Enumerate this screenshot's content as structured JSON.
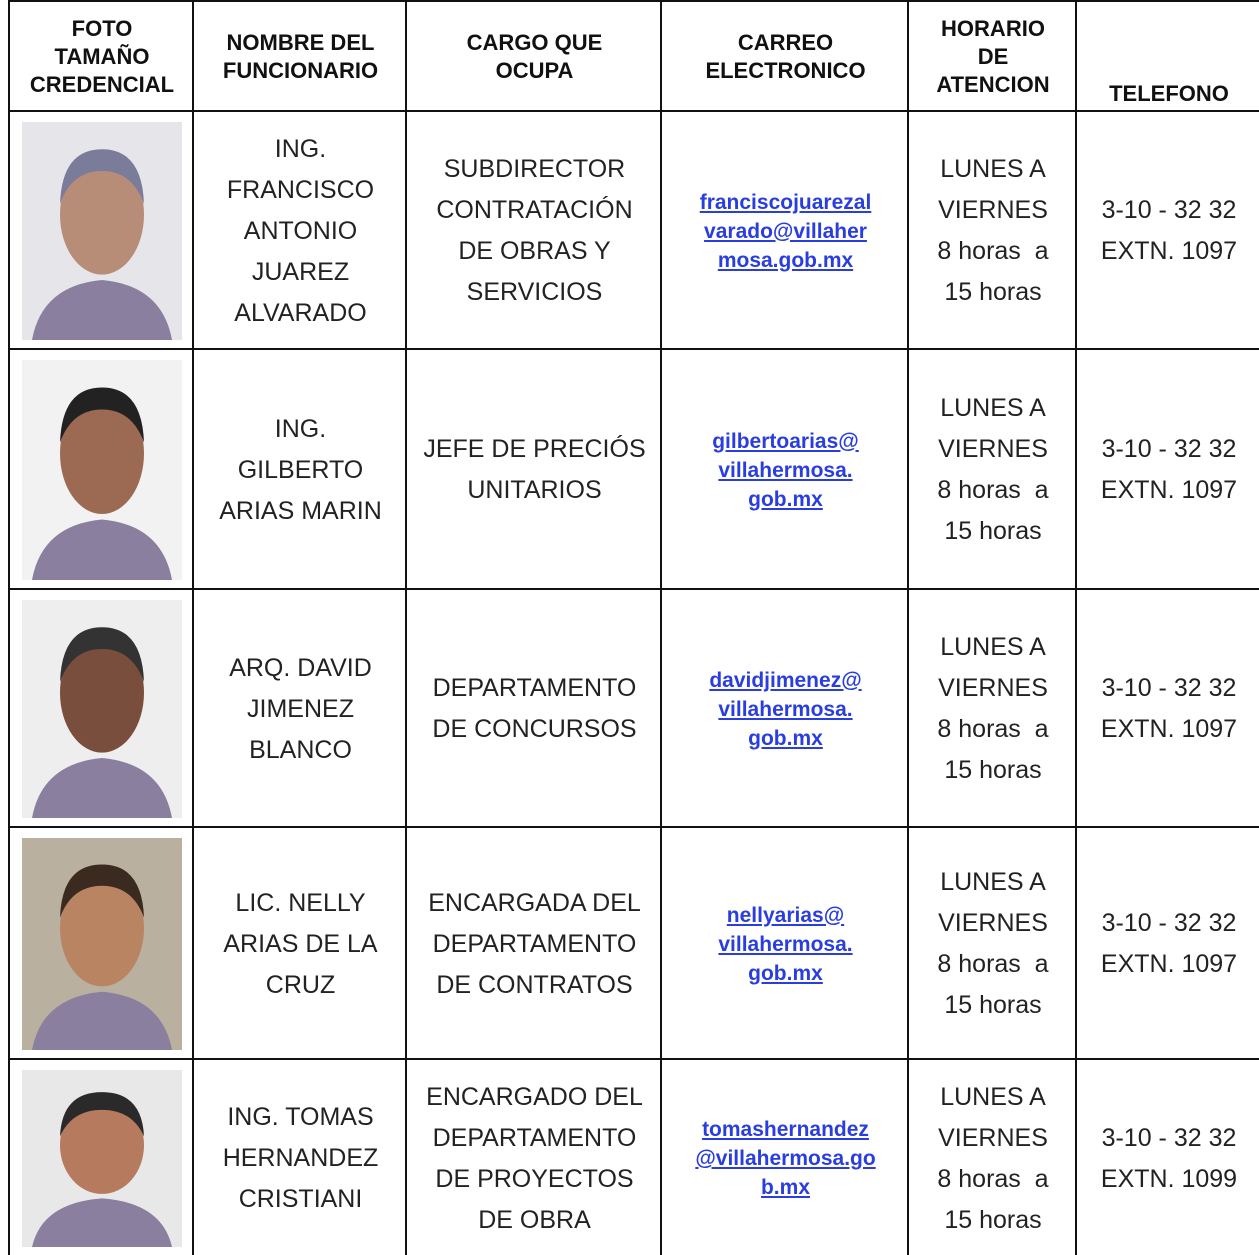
{
  "header": {
    "columns": [
      [
        "FOTO",
        "TAMAÑO",
        "CREDENCIAL"
      ],
      [
        "NOMBRE DEL",
        "FUNCIONARIO"
      ],
      [
        "CARGO QUE",
        "OCUPA"
      ],
      [
        "CARREO",
        "ELECTRONICO"
      ],
      [
        "HORARIO",
        "DE",
        "ATENCION"
      ],
      [
        "TELEFONO"
      ]
    ]
  },
  "table": {
    "rows": [
      {
        "name": [
          "ING.",
          "FRANCISCO",
          "ANTONIO",
          "JUAREZ",
          "ALVARADO"
        ],
        "cargo": [
          "SUBDIRECTOR",
          "CONTRATACIÓN",
          "DE OBRAS Y",
          "SERVICIOS"
        ],
        "email": [
          "franciscojuarezal",
          "varado@villaher",
          "mosa.gob.mx"
        ],
        "horario": [
          "LUNES A",
          "VIERNES",
          "8 horas  a",
          "15 horas"
        ],
        "telefono": [
          "3-10 - 32 32",
          "EXTN. 1097"
        ]
      },
      {
        "name": [
          "ING.",
          "GILBERTO",
          "ARIAS MARIN"
        ],
        "cargo": [
          "JEFE DE PRECIÓS",
          "UNITARIOS"
        ],
        "email": [
          "gilbertoarias@",
          "villahermosa.",
          "gob.mx"
        ],
        "horario": [
          "LUNES A",
          "VIERNES",
          "8 horas  a",
          "15 horas"
        ],
        "telefono": [
          "3-10 - 32 32",
          "EXTN. 1097"
        ]
      },
      {
        "name": [
          "ARQ. DAVID",
          "JIMENEZ",
          "BLANCO"
        ],
        "cargo": [
          "DEPARTAMENTO",
          "DE CONCURSOS"
        ],
        "email": [
          "davidjimenez@",
          "villahermosa.",
          "gob.mx"
        ],
        "horario": [
          "LUNES A",
          "VIERNES",
          "8 horas  a",
          "15 horas"
        ],
        "telefono": [
          "3-10 - 32 32",
          "EXTN. 1097"
        ]
      },
      {
        "name": [
          "LIC. NELLY",
          "ARIAS DE LA",
          "CRUZ"
        ],
        "cargo": [
          "ENCARGADA DEL",
          "DEPARTAMENTO",
          "DE CONTRATOS"
        ],
        "email": [
          "nellyarias@",
          "villahermosa.",
          "gob.mx"
        ],
        "horario": [
          "LUNES A",
          "VIERNES",
          "8 horas  a",
          "15 horas"
        ],
        "telefono": [
          "3-10 - 32 32",
          "EXTN. 1097"
        ]
      },
      {
        "name": [
          "ING. TOMAS",
          "HERNANDEZ",
          "CRISTIANI"
        ],
        "cargo": [
          "ENCARGADO DEL",
          "DEPARTAMENTO",
          "DE PROYECTOS",
          "DE OBRA"
        ],
        "email": [
          "tomashernandez",
          "@villahermosa.go",
          "b.mx"
        ],
        "horario": [
          "LUNES A",
          "VIERNES",
          "8 horas  a",
          "15 horas"
        ],
        "telefono": [
          "3-10 - 32 32",
          "EXTN. 1099"
        ]
      }
    ]
  }
}
